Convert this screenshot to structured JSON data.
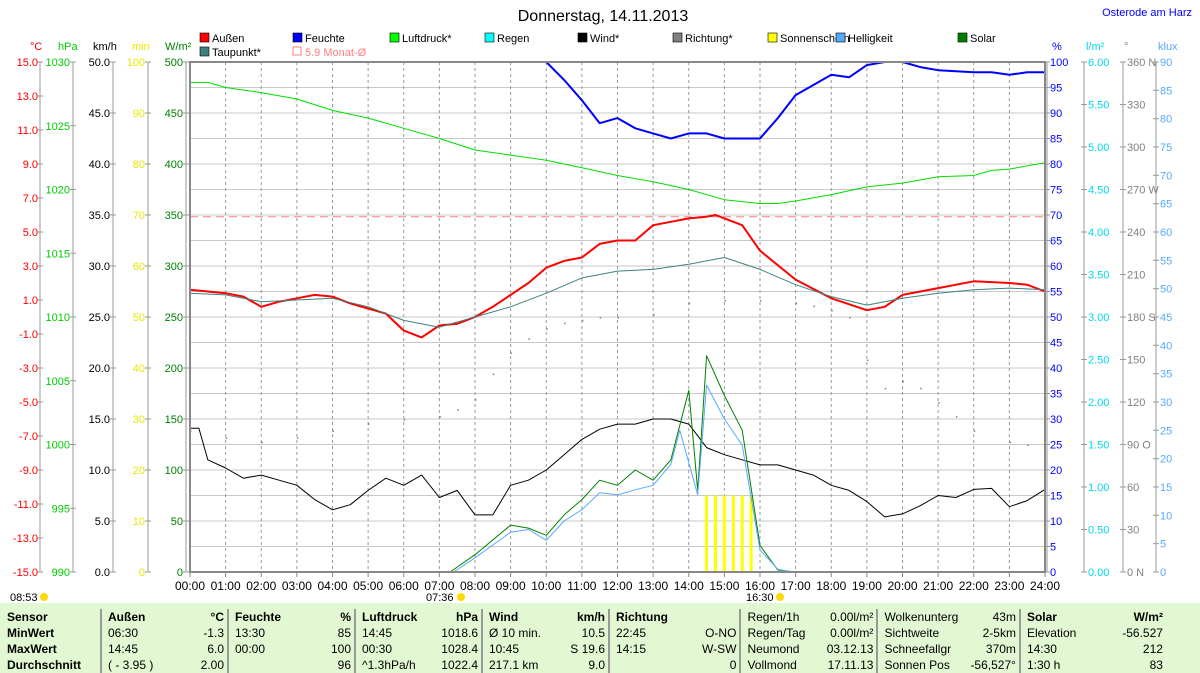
{
  "title": "Donnerstag, 14.11.2013",
  "location": "Osterode am Harz",
  "legend": [
    {
      "label": "Außen",
      "color": "#ff0000"
    },
    {
      "label": "Feuchte",
      "color": "#0000ff"
    },
    {
      "label": "Luftdruck*",
      "color": "#00ff00"
    },
    {
      "label": "Regen",
      "color": "#00ffff"
    },
    {
      "label": "Wind*",
      "color": "#000000"
    },
    {
      "label": "Richtung*",
      "color": "#808080"
    },
    {
      "label": "Sonnenschein",
      "color": "#ffff00"
    },
    {
      "label": "Helligkeit",
      "color": "#55aaff"
    },
    {
      "label": "Solar",
      "color": "#008000"
    },
    {
      "label": "Taupunkt*",
      "color": "#408080"
    },
    {
      "label": "5.9 Monat-Ø",
      "color": "#ff8080"
    }
  ],
  "markers": {
    "moonrise": "08:53",
    "sunrise": "07:36",
    "sunset": "16:30"
  },
  "chart_data": {
    "type": "line",
    "xlabel": "",
    "x_ticks": [
      "00:00",
      "01:00",
      "02:00",
      "03:00",
      "04:00",
      "05:00",
      "06:00",
      "07:00",
      "08:00",
      "09:00",
      "10:00",
      "11:00",
      "12:00",
      "13:00",
      "14:00",
      "15:00",
      "16:00",
      "17:00",
      "18:00",
      "19:00",
      "20:00",
      "21:00",
      "22:00",
      "23:00",
      "24:00"
    ],
    "xlim": [
      0,
      24
    ],
    "axes": {
      "temp": {
        "unit": "°C",
        "color": "#ff0000",
        "min": -15,
        "max": 15,
        "ticks": [
          "15.0",
          "13.0",
          "11.0",
          "9.0",
          "7.0",
          "5.0",
          "3.0",
          "1.0",
          "-1.0",
          "-3.0",
          "-5.0",
          "-7.0",
          "-9.0",
          "-11.0",
          "-13.0",
          "-15.0"
        ]
      },
      "press": {
        "unit": "hPa",
        "color": "#00dd00",
        "min": 990,
        "max": 1030,
        "ticks": [
          "1030",
          "1025",
          "1020",
          "1015",
          "1010",
          "1005",
          "1000",
          "995",
          "990"
        ]
      },
      "wind": {
        "unit": "km/h",
        "color": "#000000",
        "min": 0,
        "max": 50,
        "ticks": [
          "50.0",
          "45.0",
          "40.0",
          "35.0",
          "30.0",
          "25.0",
          "20.0",
          "15.0",
          "10.0",
          "5.0",
          "0.0"
        ]
      },
      "sun": {
        "unit": "min",
        "color": "#ffff00",
        "min": 0,
        "max": 100,
        "ticks": [
          "100",
          "90",
          "80",
          "70",
          "60",
          "50",
          "40",
          "30",
          "20",
          "10",
          "0"
        ]
      },
      "solar": {
        "unit": "W/m²",
        "color": "#008000",
        "min": 0,
        "max": 500,
        "ticks": [
          "500",
          "450",
          "400",
          "350",
          "300",
          "250",
          "200",
          "150",
          "100",
          "50",
          "0"
        ]
      },
      "hum": {
        "unit": "%",
        "color": "#0000ff",
        "min": 0,
        "max": 100,
        "ticks": [
          "100",
          "95",
          "90",
          "85",
          "80",
          "75",
          "70",
          "65",
          "60",
          "55",
          "50",
          "45",
          "40",
          "35",
          "30",
          "25",
          "20",
          "15",
          "10",
          "5",
          "0"
        ]
      },
      "rain": {
        "unit": "l/m²",
        "color": "#00e0ff",
        "min": 0,
        "max": 6,
        "ticks": [
          "6.00",
          "5.50",
          "5.00",
          "4.50",
          "4.00",
          "3.50",
          "3.00",
          "2.50",
          "2.00",
          "1.50",
          "1.00",
          "0.50",
          "0.00"
        ]
      },
      "dir": {
        "unit": "°",
        "color": "#808080",
        "min": 0,
        "max": 360,
        "ticks": [
          "360 N",
          "330",
          "300",
          "270 W",
          "240",
          "210",
          "180 S",
          "150",
          "120",
          "90 O",
          "60",
          "30",
          "0 N"
        ]
      },
      "klux": {
        "unit": "klux",
        "color": "#55aaff",
        "min": 0,
        "max": 90,
        "ticks": [
          "90",
          "85",
          "80",
          "75",
          "70",
          "65",
          "60",
          "55",
          "50",
          "45",
          "40",
          "35",
          "30",
          "25",
          "20",
          "15",
          "10",
          "5",
          "0"
        ]
      }
    },
    "month_avg_temp": 5.9,
    "series": [
      {
        "name": "Außen",
        "axis": "temp",
        "color": "#ff0000",
        "width": 2,
        "x": [
          0,
          0.5,
          1,
          1.5,
          2,
          2.5,
          3,
          3.5,
          4,
          4.5,
          5,
          5.5,
          6,
          6.5,
          7,
          7.5,
          8,
          8.5,
          9,
          9.5,
          10,
          10.5,
          11,
          11.5,
          12,
          12.5,
          13,
          13.5,
          14,
          14.5,
          14.75,
          15.5,
          16,
          17,
          18,
          19,
          19.5,
          20,
          21,
          22,
          23,
          23.5,
          24
        ],
        "y": [
          1.6,
          1.5,
          1.4,
          1.2,
          0.6,
          0.9,
          1.1,
          1.3,
          1.2,
          0.8,
          0.5,
          0.2,
          -0.8,
          -1.2,
          -0.5,
          -0.4,
          0.0,
          0.6,
          1.3,
          2.0,
          2.9,
          3.3,
          3.5,
          4.3,
          4.5,
          4.5,
          5.4,
          5.6,
          5.8,
          5.9,
          6.0,
          5.4,
          3.9,
          2.2,
          1.1,
          0.4,
          0.6,
          1.3,
          1.7,
          2.1,
          2.0,
          1.9,
          1.5
        ]
      },
      {
        "name": "Taupunkt",
        "axis": "temp",
        "color": "#408080",
        "width": 1,
        "x": [
          0,
          1,
          2,
          3,
          4,
          5,
          6,
          7,
          8,
          9,
          10,
          11,
          12,
          13,
          14,
          15,
          16,
          17,
          18,
          19,
          20,
          21,
          22,
          23,
          24
        ],
        "y": [
          1.4,
          1.3,
          0.9,
          1.0,
          1.1,
          0.6,
          -0.2,
          -0.6,
          0.0,
          0.6,
          1.4,
          2.3,
          2.7,
          2.8,
          3.1,
          3.5,
          2.8,
          1.9,
          1.2,
          0.7,
          1.1,
          1.4,
          1.6,
          1.7,
          1.6
        ]
      },
      {
        "name": "Feuchte",
        "axis": "hum",
        "color": "#0000ff",
        "width": 2,
        "x": [
          0,
          10,
          10.5,
          11,
          11.5,
          12,
          12.5,
          13,
          13.5,
          14,
          14.5,
          15,
          16,
          16.5,
          17,
          17.5,
          18,
          18.5,
          19,
          19.5,
          20,
          20.5,
          21,
          22,
          22.5,
          23,
          23.5,
          24
        ],
        "y": [
          100,
          100,
          96.5,
          92.5,
          88,
          89,
          87,
          86,
          85,
          86,
          86,
          85,
          85,
          89,
          93.5,
          95.5,
          97.5,
          97,
          99.4,
          100,
          100,
          99,
          98.4,
          98,
          98,
          97.5,
          98,
          98
        ]
      },
      {
        "name": "Luftdruck",
        "axis": "press",
        "color": "#00dd00",
        "width": 1,
        "x": [
          0,
          0.5,
          1,
          2,
          3,
          4,
          5,
          6,
          7,
          8,
          9,
          10,
          11,
          12,
          13,
          14,
          15,
          16,
          16.5,
          17,
          18,
          19,
          20,
          21,
          22,
          22.5,
          23,
          24
        ],
        "y": [
          1028.4,
          1028.4,
          1028.0,
          1027.6,
          1027.1,
          1026.2,
          1025.6,
          1024.8,
          1024.0,
          1023.1,
          1022.7,
          1022.3,
          1021.7,
          1021.1,
          1020.6,
          1020.0,
          1019.2,
          1018.9,
          1018.9,
          1019.1,
          1019.6,
          1020.2,
          1020.5,
          1021.0,
          1021.1,
          1021.5,
          1021.6,
          1022.1
        ]
      },
      {
        "name": "Wind",
        "axis": "wind",
        "color": "#000000",
        "width": 1,
        "x": [
          0,
          0.25,
          0.5,
          1,
          1.5,
          2,
          2.5,
          3,
          3.5,
          4,
          4.5,
          5,
          5.5,
          6,
          6.5,
          7,
          7.5,
          8,
          8.5,
          9,
          9.5,
          10,
          10.5,
          11,
          11.5,
          12,
          12.5,
          13,
          13.5,
          14,
          14.5,
          15,
          15.5,
          16,
          16.5,
          17,
          17.5,
          18,
          18.5,
          19,
          19.5,
          20,
          20.5,
          21,
          21.5,
          22,
          22.5,
          23,
          23.5,
          24
        ],
        "y": [
          14.1,
          14.1,
          11.0,
          10.2,
          9.2,
          9.5,
          9.0,
          8.5,
          7.1,
          6.1,
          6.6,
          8.0,
          9.2,
          8.5,
          9.5,
          7.3,
          8.0,
          5.6,
          5.6,
          8.5,
          9.0,
          10.0,
          11.5,
          13.0,
          14.0,
          14.5,
          14.5,
          15.0,
          15.0,
          14.5,
          12.2,
          11.5,
          11.0,
          10.5,
          10.5,
          10.0,
          9.5,
          8.5,
          8.0,
          6.9,
          5.4,
          5.7,
          6.5,
          7.5,
          7.3,
          8.1,
          8.2,
          6.4,
          7.0,
          8.1
        ]
      },
      {
        "name": "Richtung",
        "axis": "dir",
        "color": "#808080",
        "dotted": true,
        "x": [
          0,
          1,
          2,
          3,
          4,
          5,
          6,
          7,
          7.5,
          8,
          8.5,
          9,
          9.5,
          10,
          10.5,
          11,
          11.5,
          12,
          13,
          14,
          15,
          16,
          17,
          17.5,
          18,
          18.5,
          19,
          19.5,
          20,
          20.5,
          21,
          21.5,
          22,
          23,
          23.5
        ],
        "y": [
          100,
          95,
          92,
          95,
          100,
          105,
          108,
          110,
          115,
          122,
          140,
          155,
          165,
          172,
          176,
          178,
          180,
          180,
          182,
          190,
          192,
          192,
          190,
          188,
          185,
          180,
          150,
          130,
          135,
          130,
          120,
          110,
          100,
          92,
          90
        ]
      },
      {
        "name": "Solar",
        "axis": "solar",
        "color": "#008000",
        "width": 1,
        "x": [
          0,
          7.3,
          8,
          9,
          9.5,
          10,
          10.5,
          11,
          11.5,
          12,
          12.5,
          13,
          13.5,
          14,
          14.25,
          14.5,
          15,
          15.5,
          16,
          16.5,
          17,
          24
        ],
        "y": [
          0,
          0,
          17,
          46,
          43,
          36,
          56,
          71,
          90,
          85,
          100,
          90,
          110,
          178,
          80,
          212,
          173,
          139,
          26,
          2,
          0,
          0
        ]
      },
      {
        "name": "Helligkeit",
        "axis": "klux",
        "color": "#55aaff",
        "width": 1,
        "x": [
          0,
          7.4,
          8,
          9,
          9.5,
          10,
          10.5,
          11,
          11.5,
          12,
          12.5,
          13,
          13.5,
          13.75,
          14.25,
          14.5,
          15,
          15.5,
          16,
          16.5,
          16.9,
          24
        ],
        "y": [
          0,
          0,
          2.5,
          7,
          7.5,
          5.6,
          9,
          11,
          14,
          13.6,
          14.5,
          15.3,
          19,
          25,
          13.6,
          33,
          27,
          22.4,
          3.9,
          0.5,
          0,
          0
        ]
      }
    ],
    "sunshine_bars": {
      "axis": "sun",
      "x": [
        14.5,
        14.75,
        15.0,
        15.25,
        15.5,
        15.75
      ],
      "y": [
        15,
        15,
        15,
        15,
        15,
        15
      ]
    }
  },
  "stats": {
    "rows": [
      [
        "Sensor",
        "Außen",
        "°C",
        "Feuchte",
        "%",
        "Luftdruck",
        "hPa",
        "Wind",
        "km/h",
        "Richtung",
        "",
        "Regen/1h",
        "0.00l/m²",
        "Wolkenunterg",
        "43m",
        "Solar",
        "W/m²"
      ],
      [
        "MinWert",
        "06:30",
        "-1.3",
        "13:30",
        "85",
        "14:45",
        "1018.6",
        "Ø 10 min.",
        "10.5",
        "22:45",
        "O-NO",
        "Regen/Tag",
        "0.00l/m²",
        "Sichtweite",
        "2-5km",
        "Elevation",
        "-56.527"
      ],
      [
        "MaxWert",
        "14:45",
        "6.0",
        "00:00",
        "100",
        "00:30",
        "1028.4",
        "10:45",
        "S 19.6",
        "14:15",
        "W-SW",
        "Neumond",
        "03.12.13",
        "Schneefallgr",
        "370m",
        "14:30",
        "212"
      ],
      [
        "Durchschnitt",
        "( - 3.95 )",
        "2.00",
        "",
        "96",
        "^1.3hPa/h",
        "1022.4",
        "217.1 km",
        "9.0",
        "",
        "0",
        "Vollmond",
        "17.11.13",
        "Sonnen Pos",
        "-56,527°",
        "1:30 h",
        "83"
      ]
    ]
  }
}
